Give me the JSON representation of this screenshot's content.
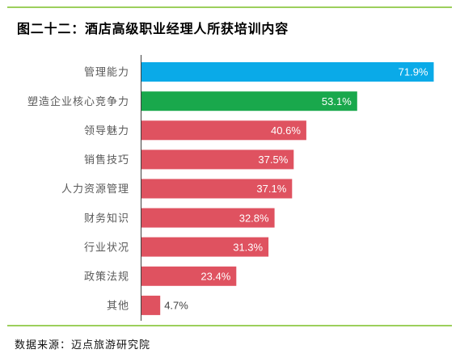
{
  "chart_data": {
    "type": "bar",
    "orientation": "horizontal",
    "title": "图二十二：酒店高级职业经理人所获培训内容",
    "categories": [
      "管理能力",
      "塑造企业核心竞争力",
      "领导魅力",
      "销售技巧",
      "人力资源管理",
      "财务知识",
      "行业状况",
      "政策法规",
      "其他"
    ],
    "values": [
      71.9,
      53.1,
      40.6,
      37.5,
      37.1,
      32.8,
      31.3,
      23.4,
      4.7
    ],
    "data_labels": [
      "71.9%",
      "53.1%",
      "40.6%",
      "37.5%",
      "37.1%",
      "32.8%",
      "31.3%",
      "23.4%",
      "4.7%"
    ],
    "xlim": [
      0,
      75
    ],
    "grid": false,
    "colors": [
      "#0aaae8",
      "#19a84c",
      "#df5260",
      "#df5260",
      "#df5260",
      "#df5260",
      "#df5260",
      "#df5260",
      "#df5260"
    ]
  },
  "footer": {
    "source": "数据来源：迈点旅游研究院"
  },
  "theme": {
    "rule_color": "#9ccf5c",
    "axis_color": "#404040",
    "label_inside_color": "#ffffff",
    "label_outside_color": "#404040"
  }
}
